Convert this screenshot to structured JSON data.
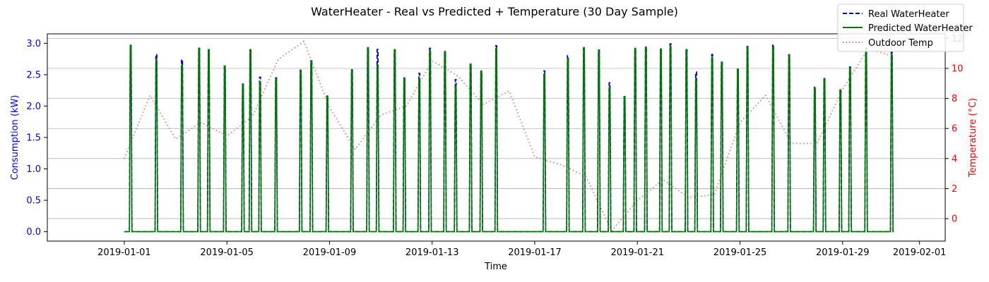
{
  "chart_data": {
    "type": "line",
    "title": "WaterHeater - Real vs Predicted + Temperature (30 Day Sample)",
    "xlabel": "Time",
    "ylabel_left": "Consumption (kW)",
    "ylabel_right": "Temperature (°C)",
    "x_range": [
      "2018-12-29",
      "2019-02-02"
    ],
    "x_ticks": [
      "2019-01-01",
      "2019-01-05",
      "2019-01-09",
      "2019-01-13",
      "2019-01-17",
      "2019-01-21",
      "2019-01-25",
      "2019-01-29",
      "2019-02-01"
    ],
    "ylim_left": [
      -0.15,
      3.15
    ],
    "yticks_left": [
      "0.0",
      "0.5",
      "1.0",
      "1.5",
      "2.0",
      "2.5",
      "3.0"
    ],
    "ylim_right": [
      -1.5,
      12.3
    ],
    "yticks_right": [
      "0",
      "2",
      "4",
      "6",
      "8",
      "10",
      "12"
    ],
    "grid": "horizontal",
    "legend_position": "top-right",
    "colors": {
      "real": "#0000cc",
      "predicted": "#007700",
      "temp": "#e07878",
      "left_axis": "#0000ff",
      "right_axis": "#ff0000"
    },
    "series": [
      {
        "name": "Real WaterHeater",
        "style": "dashed",
        "spikes": [
          [
            "2019-01-01T06:00",
            2.95
          ],
          [
            "2019-01-02T06:00",
            2.82
          ],
          [
            "2019-01-03T06:00",
            2.74
          ],
          [
            "2019-01-03T22:00",
            2.92
          ],
          [
            "2019-01-04T07:00",
            2.88
          ],
          [
            "2019-01-04T22:00",
            2.63
          ],
          [
            "2019-01-05T15:00",
            2.35
          ],
          [
            "2019-01-05T22:00",
            2.88
          ],
          [
            "2019-01-06T07:00",
            2.46
          ],
          [
            "2019-01-06T22:00",
            2.45
          ],
          [
            "2019-01-07T21:00",
            2.57
          ],
          [
            "2019-01-08T07:00",
            2.72
          ],
          [
            "2019-01-08T22:00",
            2.16
          ],
          [
            "2019-01-09T21:00",
            2.57
          ],
          [
            "2019-01-10T12:00",
            2.92
          ],
          [
            "2019-01-10T21:00",
            2.9
          ],
          [
            "2019-01-11T13:00",
            2.88
          ],
          [
            "2019-01-11T22:00",
            2.44
          ],
          [
            "2019-01-12T12:00",
            2.52
          ],
          [
            "2019-01-12T22:00",
            2.92
          ],
          [
            "2019-01-13T12:00",
            2.86
          ],
          [
            "2019-01-13T22:00",
            2.42
          ],
          [
            "2019-01-14T12:00",
            2.65
          ],
          [
            "2019-01-14T22:00",
            2.55
          ],
          [
            "2019-01-15T12:00",
            2.96
          ],
          [
            "2019-01-17T09:00",
            2.56
          ],
          [
            "2019-01-18T07:00",
            2.8
          ],
          [
            "2019-01-18T22:00",
            2.92
          ],
          [
            "2019-01-19T12:00",
            2.89
          ],
          [
            "2019-01-19T22:00",
            2.37
          ],
          [
            "2019-01-20T12:00",
            2.15
          ],
          [
            "2019-01-20T22:00",
            2.9
          ],
          [
            "2019-01-21T08:00",
            2.93
          ],
          [
            "2019-01-21T22:00",
            2.91
          ],
          [
            "2019-01-22T07:00",
            2.99
          ],
          [
            "2019-01-22T22:00",
            2.9
          ],
          [
            "2019-01-23T07:00",
            2.54
          ],
          [
            "2019-01-23T22:00",
            2.82
          ],
          [
            "2019-01-24T07:00",
            2.69
          ],
          [
            "2019-01-24T22:00",
            2.58
          ],
          [
            "2019-01-25T07:00",
            2.94
          ],
          [
            "2019-01-26T07:00",
            2.98
          ],
          [
            "2019-01-26T22:00",
            2.81
          ],
          [
            "2019-01-27T22:00",
            2.3
          ],
          [
            "2019-01-28T07:00",
            2.45
          ],
          [
            "2019-01-28T22:00",
            2.26
          ],
          [
            "2019-01-29T07:00",
            2.62
          ],
          [
            "2019-01-29T22:00",
            2.92
          ],
          [
            "2019-01-30T22:00",
            2.86
          ]
        ]
      },
      {
        "name": "Predicted WaterHeater",
        "style": "solid",
        "spikes": [
          [
            "2019-01-01T06:00",
            2.97
          ],
          [
            "2019-01-02T06:00",
            2.74
          ],
          [
            "2019-01-03T06:00",
            2.65
          ],
          [
            "2019-01-03T22:00",
            2.92
          ],
          [
            "2019-01-04T07:00",
            2.9
          ],
          [
            "2019-01-04T22:00",
            2.64
          ],
          [
            "2019-01-05T15:00",
            2.35
          ],
          [
            "2019-01-05T22:00",
            2.9
          ],
          [
            "2019-01-06T07:00",
            2.38
          ],
          [
            "2019-01-06T22:00",
            2.44
          ],
          [
            "2019-01-07T21:00",
            2.57
          ],
          [
            "2019-01-08T07:00",
            2.72
          ],
          [
            "2019-01-08T22:00",
            2.16
          ],
          [
            "2019-01-09T21:00",
            2.58
          ],
          [
            "2019-01-10T12:00",
            2.93
          ],
          [
            "2019-01-10T21:00",
            2.64
          ],
          [
            "2019-01-11T13:00",
            2.9
          ],
          [
            "2019-01-11T22:00",
            2.45
          ],
          [
            "2019-01-12T12:00",
            2.44
          ],
          [
            "2019-01-12T22:00",
            2.89
          ],
          [
            "2019-01-13T12:00",
            2.87
          ],
          [
            "2019-01-13T22:00",
            2.32
          ],
          [
            "2019-01-14T12:00",
            2.67
          ],
          [
            "2019-01-14T22:00",
            2.56
          ],
          [
            "2019-01-15T12:00",
            2.92
          ],
          [
            "2019-01-17T09:00",
            2.51
          ],
          [
            "2019-01-18T07:00",
            2.75
          ],
          [
            "2019-01-18T22:00",
            2.93
          ],
          [
            "2019-01-19T12:00",
            2.88
          ],
          [
            "2019-01-19T22:00",
            2.3
          ],
          [
            "2019-01-20T12:00",
            2.15
          ],
          [
            "2019-01-20T22:00",
            2.92
          ],
          [
            "2019-01-21T08:00",
            2.94
          ],
          [
            "2019-01-21T22:00",
            2.91
          ],
          [
            "2019-01-22T07:00",
            2.95
          ],
          [
            "2019-01-22T22:00",
            2.9
          ],
          [
            "2019-01-23T07:00",
            2.43
          ],
          [
            "2019-01-23T22:00",
            2.78
          ],
          [
            "2019-01-24T07:00",
            2.7
          ],
          [
            "2019-01-24T22:00",
            2.59
          ],
          [
            "2019-01-25T07:00",
            2.95
          ],
          [
            "2019-01-26T07:00",
            2.94
          ],
          [
            "2019-01-26T22:00",
            2.82
          ],
          [
            "2019-01-27T22:00",
            2.29
          ],
          [
            "2019-01-28T07:00",
            2.44
          ],
          [
            "2019-01-28T22:00",
            2.26
          ],
          [
            "2019-01-29T07:00",
            2.61
          ],
          [
            "2019-01-29T22:00",
            2.9
          ],
          [
            "2019-01-30T22:00",
            2.82
          ]
        ]
      },
      {
        "name": "Outdoor Temp",
        "style": "dotted",
        "axis": "right",
        "points": [
          [
            "2019-01-01T00:00",
            4.0
          ],
          [
            "2019-01-02T00:00",
            8.2
          ],
          [
            "2019-01-03T00:00",
            5.3
          ],
          [
            "2019-01-04T00:00",
            6.4
          ],
          [
            "2019-01-05T00:00",
            5.5
          ],
          [
            "2019-01-06T00:00",
            6.8
          ],
          [
            "2019-01-07T00:00",
            10.6
          ],
          [
            "2019-01-08T00:00",
            11.8
          ],
          [
            "2019-01-09T00:00",
            7.4
          ],
          [
            "2019-01-10T00:00",
            4.6
          ],
          [
            "2019-01-11T00:00",
            6.9
          ],
          [
            "2019-01-12T00:00",
            7.5
          ],
          [
            "2019-01-13T00:00",
            10.5
          ],
          [
            "2019-01-14T00:00",
            9.5
          ],
          [
            "2019-01-15T00:00",
            7.6
          ],
          [
            "2019-01-16T00:00",
            8.5
          ],
          [
            "2019-01-17T00:00",
            4.1
          ],
          [
            "2019-01-18T00:00",
            3.6
          ],
          [
            "2019-01-19T00:00",
            2.8
          ],
          [
            "2019-01-20T00:00",
            -0.8
          ],
          [
            "2019-01-21T00:00",
            1.2
          ],
          [
            "2019-01-22T00:00",
            2.6
          ],
          [
            "2019-01-23T00:00",
            1.4
          ],
          [
            "2019-01-24T00:00",
            1.6
          ],
          [
            "2019-01-25T00:00",
            6.4
          ],
          [
            "2019-01-26T00:00",
            8.2
          ],
          [
            "2019-01-27T00:00",
            5.0
          ],
          [
            "2019-01-28T00:00",
            5.0
          ],
          [
            "2019-01-29T00:00",
            8.6
          ],
          [
            "2019-01-30T00:00",
            11.3
          ],
          [
            "2019-01-31T00:00",
            10.8
          ]
        ]
      }
    ]
  }
}
